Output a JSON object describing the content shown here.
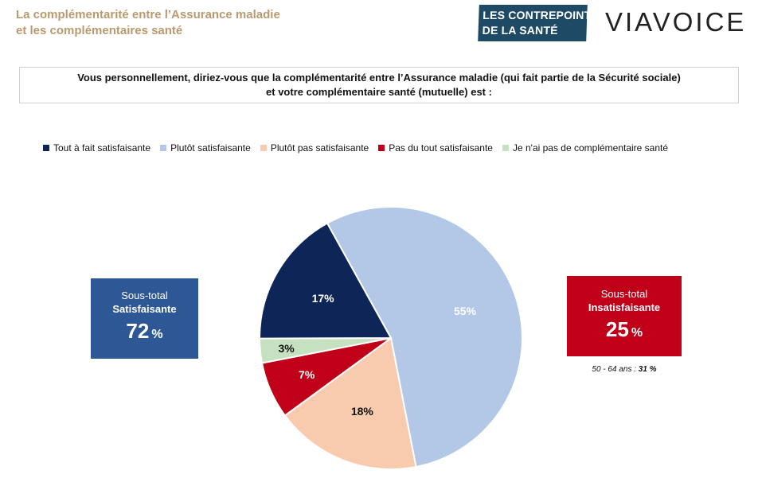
{
  "header": {
    "title_line1": "La complémentarité entre l’Assurance maladie",
    "title_line2": "et les complémentaires santé",
    "logo_left_line1": "LES CONTREPOINTS",
    "logo_left_line2": "DE LA SANTÉ",
    "logo_right": "VIAVOICE"
  },
  "question": {
    "line1": "Vous personnellement, diriez-vous que la complémentarité entre l’Assurance maladie (qui fait partie de la Sécurité sociale)",
    "line2": "et votre complémentaire santé (mutuelle) est :"
  },
  "subtotals": {
    "left": {
      "line1": "Sous-total",
      "line2": "Satisfaisante",
      "value": "72",
      "unit": "%",
      "color": "#2e5796"
    },
    "right": {
      "line1": "Sous-total",
      "line2": "Insatisfaisante",
      "value": "25",
      "unit": "%",
      "color": "#c00018"
    }
  },
  "age_note": {
    "label": "50 - 64 ans :",
    "value": "31 %"
  },
  "chart_data": {
    "type": "pie",
    "title": "",
    "legend_position": "top",
    "categories": [
      "Tout à fait satisfaisante",
      "Plutôt satisfaisante",
      "Plutôt pas satisfaisante",
      "Pas du tout satisfaisante",
      "Je n'ai pas de complémentaire santé"
    ],
    "values": [
      17,
      55,
      18,
      7,
      3
    ],
    "labels": [
      "17%",
      "55%",
      "18%",
      "7%",
      "3%"
    ],
    "colors": [
      "#0d2557",
      "#b2c8e6",
      "#f8cbae",
      "#c00018",
      "#c5e1bf"
    ],
    "label_colors": [
      "#ffffff",
      "#ffffff",
      "#111111",
      "#ffffff",
      "#111111"
    ]
  }
}
